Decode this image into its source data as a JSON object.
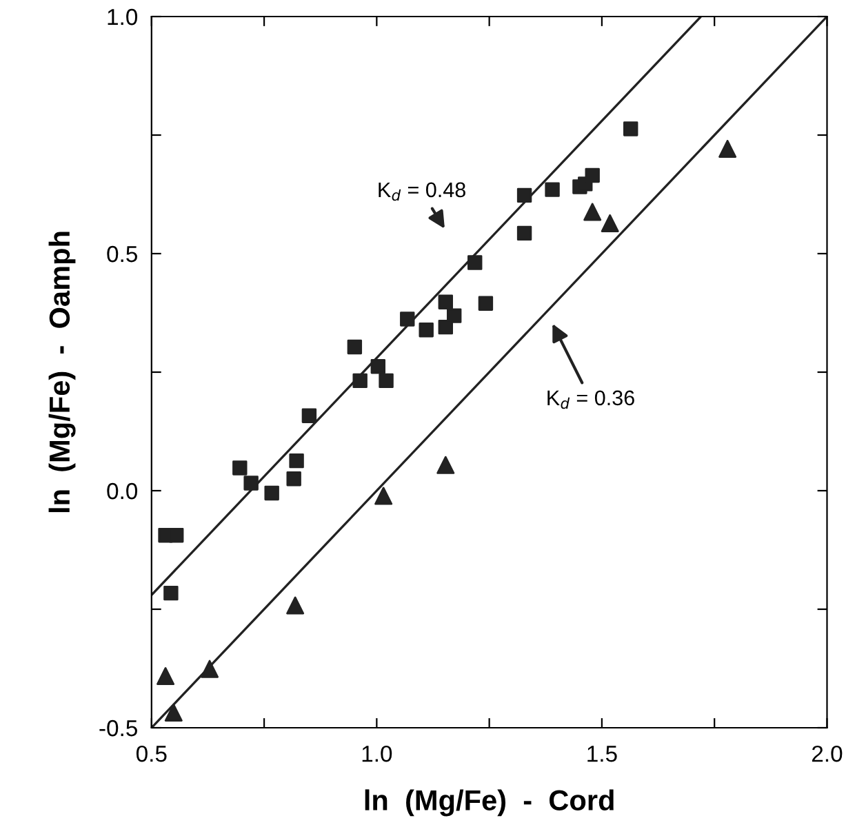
{
  "chart_data": {
    "type": "scatter",
    "xlabel": "ln  (Mg/Fe)  -  Cord",
    "ylabel": "ln  (Mg/Fe)  -  Oamph",
    "xlim": [
      0.5,
      2.0
    ],
    "ylim": [
      -0.5,
      1.0
    ],
    "xticks": [
      0.5,
      {
        "value": 0.75,
        "label": null
      },
      {
        "value": 1,
        "label": "1.0"
      },
      {
        "value": 1.25,
        "label": null
      },
      1.5,
      {
        "value": 1.75,
        "label": null
      },
      {
        "value": 2,
        "label": "2.0"
      }
    ],
    "yticks": [
      -0.5,
      {
        "value": -0.25,
        "label": null
      },
      {
        "value": 0,
        "label": "0.0"
      },
      {
        "value": 0.25,
        "label": null
      },
      0.5,
      {
        "value": 0.75,
        "label": null
      },
      {
        "value": 1,
        "label": "1.0"
      }
    ],
    "grid": false,
    "legend": false,
    "series": [
      {
        "marker": "square",
        "color": "#222222",
        "x": [
          1.218,
          1.153,
          1.242,
          1.172,
          1.153,
          1.068,
          1.11,
          0.951,
          1.003,
          0.963,
          1.021,
          0.85,
          0.696,
          0.721,
          0.767,
          0.822,
          0.816,
          0.531,
          0.555,
          0.543,
          1.564,
          1.328,
          1.39,
          1.451,
          1.463,
          1.479,
          1.328
        ],
        "values": [
          0.481,
          0.398,
          0.395,
          0.369,
          0.345,
          0.362,
          0.339,
          0.303,
          0.262,
          0.232,
          0.232,
          0.158,
          0.048,
          0.016,
          -0.005,
          0.063,
          0.025,
          -0.094,
          -0.094,
          -0.216,
          0.763,
          0.623,
          0.635,
          0.641,
          0.647,
          0.665,
          0.543
        ]
      },
      {
        "marker": "triangle",
        "color": "#222222",
        "x": [
          1.779,
          1.479,
          1.518,
          1.153,
          1.015,
          0.819,
          0.531,
          0.629,
          0.549
        ],
        "values": [
          0.721,
          0.588,
          0.564,
          0.054,
          -0.011,
          -0.242,
          -0.391,
          -0.376,
          -0.468
        ]
      },
      {
        "type": "line",
        "color": "#222222",
        "x": [
          0.5,
          1.72
        ],
        "values": [
          -0.22,
          1.0
        ]
      },
      {
        "type": "line",
        "color": "#222222",
        "x": [
          0.5,
          2.0
        ],
        "values": [
          -0.5,
          1.0
        ]
      }
    ],
    "annotations": [
      "K$_{d}$ = 0.48",
      "K$_{d}$ = 0.36"
    ]
  }
}
